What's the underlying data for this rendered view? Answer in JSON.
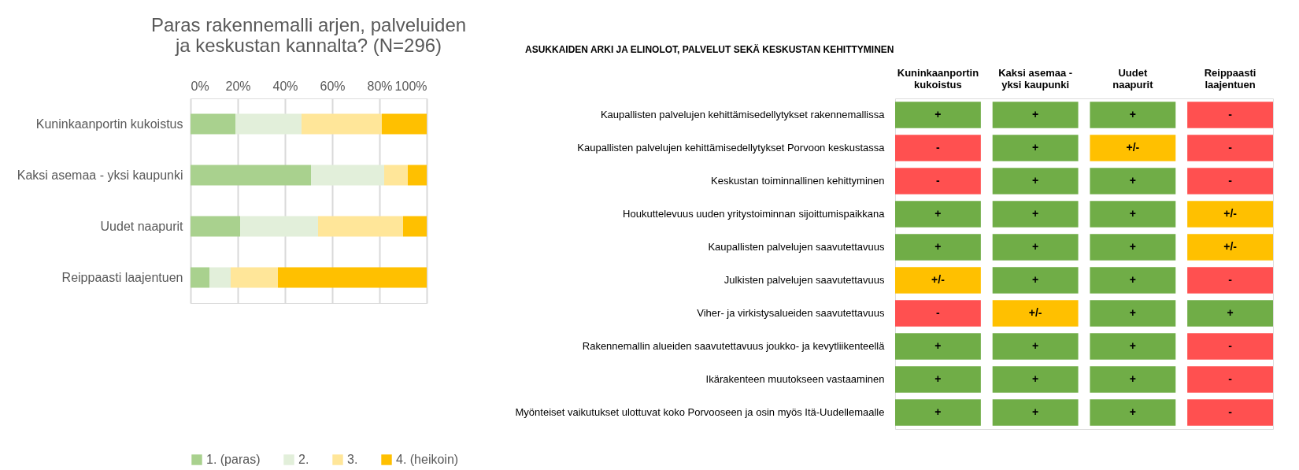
{
  "chart_data": [
    {
      "type": "bar",
      "orientation": "horizontal",
      "stacked": true,
      "title": "Paras rakennemalli arjen, palveluiden ja keskustan kannalta? (N=296)",
      "categories": [
        "Kuninkaanportin kukoistus",
        "Kaksi asemaa - yksi kaupunki",
        "Uudet naapurit",
        "Reippaasti laajentuen"
      ],
      "series": [
        {
          "name": "1. (paras)",
          "color": "#a9d18e",
          "values": [
            19,
            51,
            21,
            8
          ]
        },
        {
          "name": "2.",
          "color": "#e2efda",
          "values": [
            28,
            31,
            33,
            9
          ]
        },
        {
          "name": "3.",
          "color": "#ffe699",
          "values": [
            34,
            10,
            36,
            20
          ]
        },
        {
          "name": "4. (heikoin)",
          "color": "#ffc000",
          "values": [
            19,
            8,
            10,
            63
          ]
        }
      ],
      "xlim": [
        0,
        100
      ],
      "xticks": [
        {
          "value": 0,
          "label": "0%"
        },
        {
          "value": 20,
          "label": "20%"
        },
        {
          "value": 40,
          "label": "40%"
        },
        {
          "value": 60,
          "label": "60%"
        },
        {
          "value": 80,
          "label": "80%"
        },
        {
          "value": 100,
          "label": "100%"
        }
      ],
      "grid": "x",
      "legend": "bottom"
    },
    {
      "type": "other",
      "title": "ASUKKAIDEN ARKI JA ELINOLOT, PALVELUT SEKÄ KESKUSTAN KEHITTYMINEN",
      "categories": [
        "Kuninkaanportin kukoistus",
        "Kaksi asemaa - yksi kaupunki",
        "Uudet naapurit",
        "Reippaasti laajentuen"
      ],
      "y_categories": [
        "Kaupallisten palvelujen kehittämisedellytykset rakennemallissa",
        "Kaupallisten palvelujen kehittämisedellytykset Porvoon keskustassa",
        "Keskustan toiminnallinen kehittyminen",
        "Houkuttelevuus uuden yritystoiminnan sijoittumispaikkana",
        "Kaupallisten palvelujen saavutettavuus",
        "Julkisten palvelujen saavutettavuus",
        "Viher- ja virkistysalueiden saavutettavuus",
        "Rakennemallin alueiden saavutettavuus joukko- ja kevytliikenteellä",
        "Ikärakenteen muutokseen vastaaminen",
        "Myönteiset vaikutukset ulottuvat koko Porvooseen ja osin myös Itä-Uudellemaalle"
      ],
      "cell_labels": [
        [
          "+",
          "+",
          "+",
          "-"
        ],
        [
          "-",
          "+",
          "+/-",
          "-"
        ],
        [
          "-",
          "+",
          "+",
          "-"
        ],
        [
          "+",
          "+",
          "+",
          "+/-"
        ],
        [
          "+",
          "+",
          "+",
          "+/-"
        ],
        [
          "+/-",
          "+",
          "+",
          "-"
        ],
        [
          "-",
          "+/-",
          "+",
          "+"
        ],
        [
          "+",
          "+",
          "+",
          "-"
        ],
        [
          "+",
          "+",
          "+",
          "-"
        ],
        [
          "+",
          "+",
          "+",
          "-"
        ]
      ],
      "colors": [
        "#70ad47",
        "#70ad47",
        "#70ad47",
        "#ff5050",
        "#ff5050",
        "#70ad47",
        "#ffc000",
        "#ff5050",
        "#ff5050",
        "#70ad47",
        "#70ad47",
        "#ff5050",
        "#70ad47",
        "#70ad47",
        "#70ad47",
        "#ffc000",
        "#70ad47",
        "#70ad47",
        "#70ad47",
        "#ffc000",
        "#ffc000",
        "#70ad47",
        "#70ad47",
        "#ff5050",
        "#ff5050",
        "#ffc000",
        "#70ad47",
        "#70ad47",
        "#70ad47",
        "#70ad47",
        "#70ad47",
        "#ff5050",
        "#70ad47",
        "#70ad47",
        "#70ad47",
        "#ff5050",
        "#70ad47",
        "#70ad47",
        "#70ad47",
        "#ff5050"
      ]
    }
  ]
}
